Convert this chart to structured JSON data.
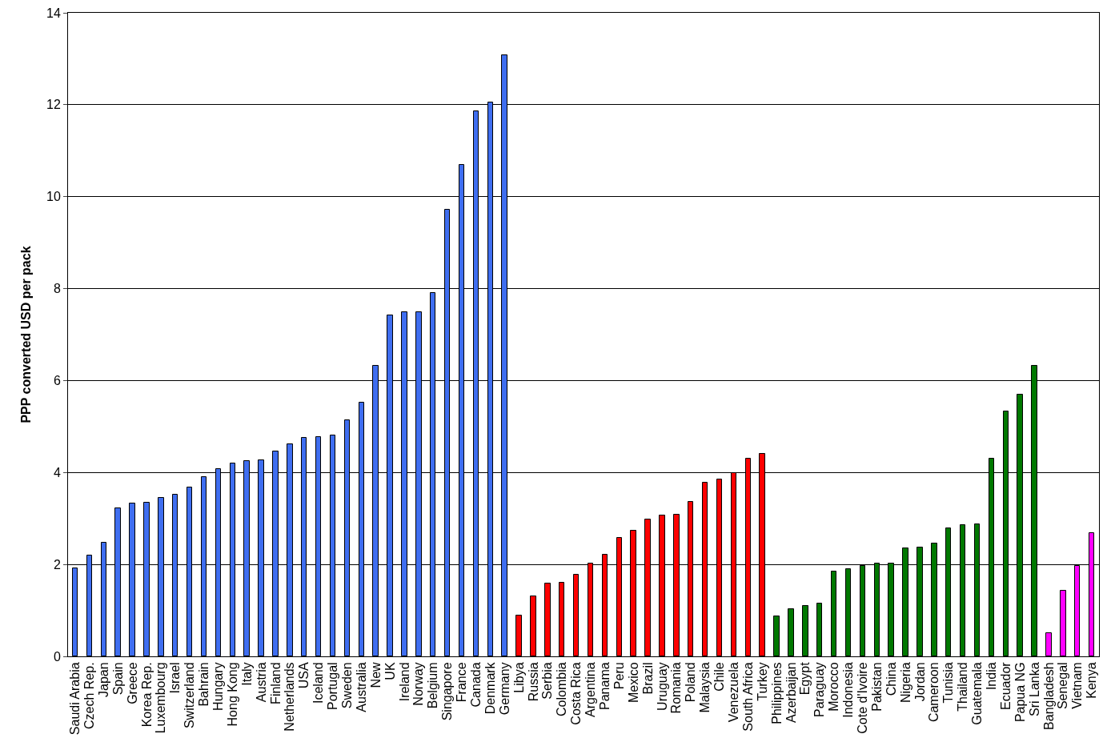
{
  "chart_data": {
    "type": "bar",
    "ylabel": "PPP converted USD per pack",
    "categories": [
      "Saudi Arabia",
      "Czech Rep.",
      "Japan",
      "Spain",
      "Greece",
      "Korea Rep.",
      "Luxembourg",
      "Israel",
      "Switzerland",
      "Bahrain",
      "Hungary",
      "Hong Kong",
      "Italy",
      "Austria",
      "Finland",
      "Netherlands",
      "USA",
      "Iceland",
      "Portugal",
      "Sweden",
      "Australia",
      "New",
      "UK",
      "Ireland",
      "Norway",
      "Belgium",
      "Singapore",
      "France",
      "Canada",
      "Denmark",
      "Germany",
      "Libya",
      "Russia",
      "Serbia",
      "Colombia",
      "Costa Rica",
      "Argentina",
      "Panama",
      "Peru",
      "Mexico",
      "Brazil",
      "Uruguay",
      "Romania",
      "Poland",
      "Malaysia",
      "Chile",
      "Venezuela",
      "South Africa",
      "Turkey",
      "Philippines",
      "Azerbaijan",
      "Egypt",
      "Paraguay",
      "Morocco",
      "Indonesia",
      "Cote d'Ivoire",
      "Pakistan",
      "China",
      "Nigeria",
      "Jordan",
      "Cameroon",
      "Tunisia",
      "Thailand",
      "Guatemala",
      "India",
      "Ecuador",
      "Papua NG",
      "Sri Lanka",
      "Bangladesh",
      "Senegal",
      "Vietnam",
      "Kenya"
    ],
    "values": [
      1.92,
      2.2,
      2.47,
      3.22,
      3.32,
      3.35,
      3.45,
      3.52,
      3.68,
      3.9,
      4.08,
      4.2,
      4.25,
      4.27,
      4.46,
      4.62,
      4.75,
      4.77,
      4.8,
      5.13,
      5.52,
      6.32,
      7.42,
      7.48,
      7.48,
      7.9,
      9.72,
      10.7,
      11.85,
      12.05,
      13.08,
      0.88,
      1.3,
      1.58,
      1.6,
      1.77,
      2.02,
      2.22,
      2.57,
      2.73,
      2.98,
      3.07,
      3.08,
      3.36,
      3.78,
      3.85,
      3.98,
      4.3,
      4.4,
      0.87,
      1.03,
      1.1,
      1.15,
      1.85,
      1.9,
      1.97,
      2.02,
      2.02,
      2.35,
      2.37,
      2.45,
      2.78,
      2.85,
      2.88,
      4.3,
      5.33,
      5.7,
      6.32,
      0.5,
      1.43,
      1.97,
      2.68
    ],
    "colors": [
      "#3f6ef0",
      "#3f6ef0",
      "#3f6ef0",
      "#3f6ef0",
      "#3f6ef0",
      "#3f6ef0",
      "#3f6ef0",
      "#3f6ef0",
      "#3f6ef0",
      "#3f6ef0",
      "#3f6ef0",
      "#3f6ef0",
      "#3f6ef0",
      "#3f6ef0",
      "#3f6ef0",
      "#3f6ef0",
      "#3f6ef0",
      "#3f6ef0",
      "#3f6ef0",
      "#3f6ef0",
      "#3f6ef0",
      "#3f6ef0",
      "#3f6ef0",
      "#3f6ef0",
      "#3f6ef0",
      "#3f6ef0",
      "#3f6ef0",
      "#3f6ef0",
      "#3f6ef0",
      "#3f6ef0",
      "#3f6ef0",
      "#ff0000",
      "#ff0000",
      "#ff0000",
      "#ff0000",
      "#ff0000",
      "#ff0000",
      "#ff0000",
      "#ff0000",
      "#ff0000",
      "#ff0000",
      "#ff0000",
      "#ff0000",
      "#ff0000",
      "#ff0000",
      "#ff0000",
      "#ff0000",
      "#ff0000",
      "#ff0000",
      "#007800",
      "#007800",
      "#007800",
      "#007800",
      "#007800",
      "#007800",
      "#007800",
      "#007800",
      "#007800",
      "#007800",
      "#007800",
      "#007800",
      "#007800",
      "#007800",
      "#007800",
      "#007800",
      "#007800",
      "#007800",
      "#007800",
      "#ff00ff",
      "#ff00ff",
      "#ff00ff",
      "#ff00ff"
    ],
    "ylim": [
      0,
      14
    ],
    "yticks": [
      0,
      2,
      4,
      6,
      8,
      10,
      12,
      14
    ],
    "grid": "y"
  }
}
